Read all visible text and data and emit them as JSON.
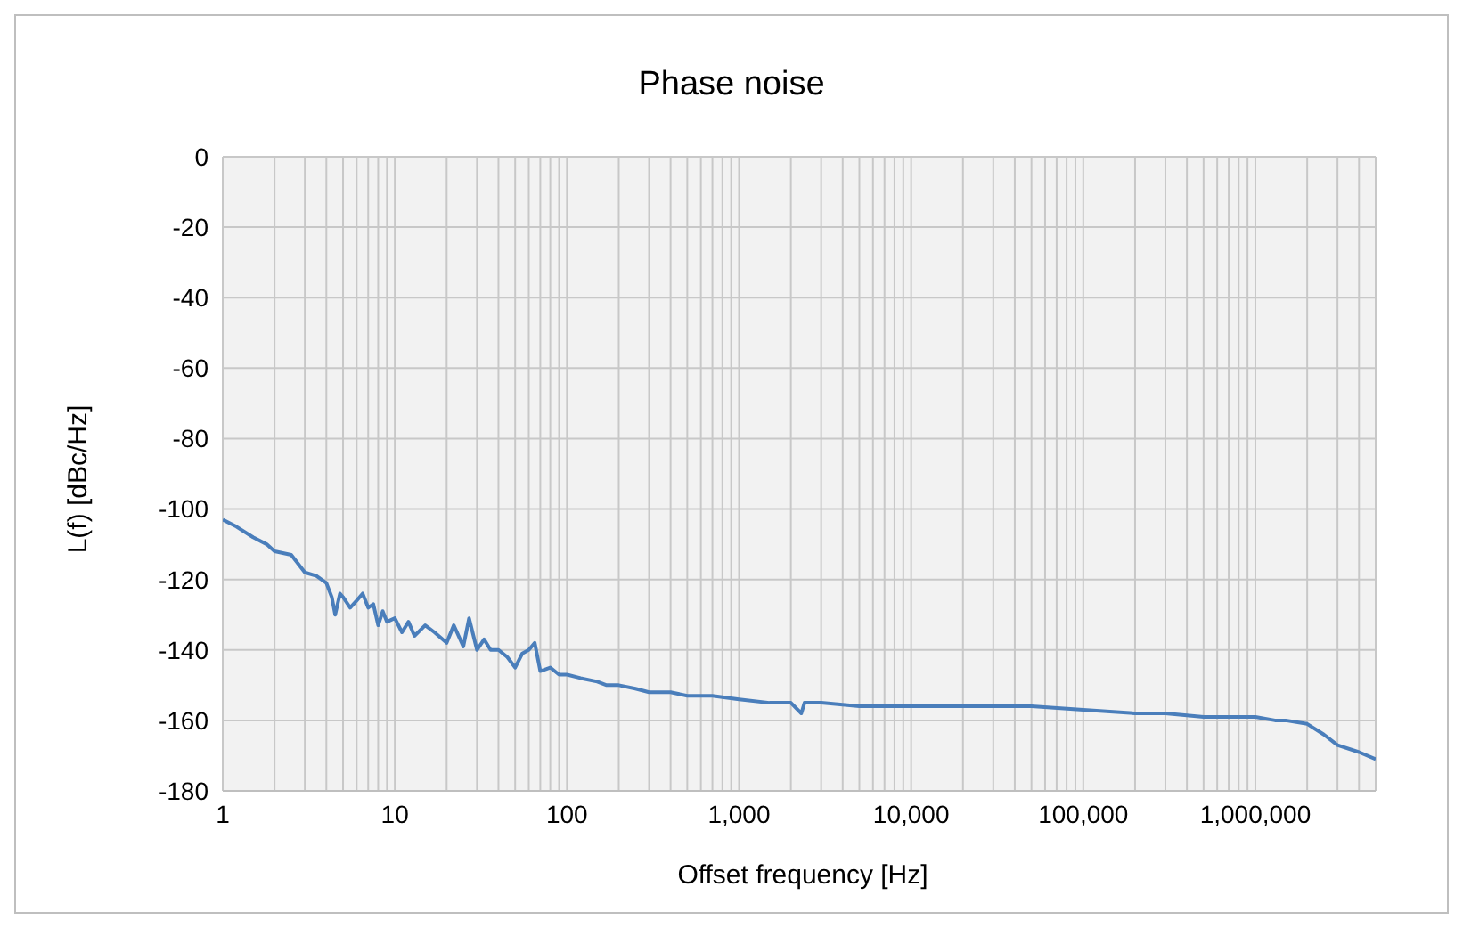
{
  "chart_data": {
    "type": "line",
    "title": "Phase noise",
    "xlabel": "Offset frequency [Hz]",
    "ylabel": "L(f) [dBc/Hz]",
    "log": "x",
    "grid": true,
    "marker": "none",
    "line_style": "solid",
    "xlim": [
      1,
      5000000
    ],
    "xticks": [
      1,
      {
        "value": 2,
        "label": null
      },
      {
        "value": 3,
        "label": null
      },
      {
        "value": 4,
        "label": null
      },
      {
        "value": 5,
        "label": null
      },
      {
        "value": 6,
        "label": null
      },
      {
        "value": 7,
        "label": null
      },
      {
        "value": 8,
        "label": null
      },
      {
        "value": 9,
        "label": null
      },
      10,
      {
        "value": 20,
        "label": null
      },
      {
        "value": 30,
        "label": null
      },
      {
        "value": 40,
        "label": null
      },
      {
        "value": 50,
        "label": null
      },
      {
        "value": 60,
        "label": null
      },
      {
        "value": 70,
        "label": null
      },
      {
        "value": 80,
        "label": null
      },
      {
        "value": 90,
        "label": null
      },
      100,
      {
        "value": 200,
        "label": null
      },
      {
        "value": 300,
        "label": null
      },
      {
        "value": 400,
        "label": null
      },
      {
        "value": 500,
        "label": null
      },
      {
        "value": 600,
        "label": null
      },
      {
        "value": 700,
        "label": null
      },
      {
        "value": 800,
        "label": null
      },
      {
        "value": 900,
        "label": null
      },
      {
        "value": 1000,
        "label": "1,000"
      },
      {
        "value": 2000,
        "label": null
      },
      {
        "value": 3000,
        "label": null
      },
      {
        "value": 4000,
        "label": null
      },
      {
        "value": 5000,
        "label": null
      },
      {
        "value": 6000,
        "label": null
      },
      {
        "value": 7000,
        "label": null
      },
      {
        "value": 8000,
        "label": null
      },
      {
        "value": 9000,
        "label": null
      },
      {
        "value": 10000,
        "label": "10,000"
      },
      {
        "value": 20000,
        "label": null
      },
      {
        "value": 30000,
        "label": null
      },
      {
        "value": 40000,
        "label": null
      },
      {
        "value": 50000,
        "label": null
      },
      {
        "value": 60000,
        "label": null
      },
      {
        "value": 70000,
        "label": null
      },
      {
        "value": 80000,
        "label": null
      },
      {
        "value": 90000,
        "label": null
      },
      {
        "value": 100000,
        "label": "100,000"
      },
      {
        "value": 200000,
        "label": null
      },
      {
        "value": 300000,
        "label": null
      },
      {
        "value": 400000,
        "label": null
      },
      {
        "value": 500000,
        "label": null
      },
      {
        "value": 600000,
        "label": null
      },
      {
        "value": 700000,
        "label": null
      },
      {
        "value": 800000,
        "label": null
      },
      {
        "value": 900000,
        "label": null
      },
      {
        "value": 1000000,
        "label": "1,000,000"
      },
      {
        "value": 2000000,
        "label": null
      },
      {
        "value": 3000000,
        "label": null
      },
      {
        "value": 4000000,
        "label": null
      }
    ],
    "ylim": [
      -180,
      0
    ],
    "yticks": [
      0,
      -20,
      -40,
      -60,
      -80,
      -100,
      -120,
      -140,
      -160,
      -180
    ],
    "x": [
      1,
      1.2,
      1.5,
      1.8,
      2,
      2.5,
      3,
      3.5,
      4,
      4.3,
      4.5,
      4.8,
      5,
      5.5,
      6,
      6.5,
      7,
      7.5,
      8,
      8.5,
      9,
      10,
      11,
      12,
      13,
      15,
      17,
      20,
      22,
      25,
      27,
      30,
      33,
      36,
      40,
      45,
      50,
      55,
      60,
      65,
      70,
      80,
      90,
      100,
      120,
      150,
      170,
      200,
      250,
      300,
      400,
      500,
      700,
      1000,
      1500,
      2000,
      2300,
      2400,
      3000,
      5000,
      10000,
      20000,
      50000,
      100000,
      200000,
      300000,
      500000,
      1000000,
      1300000,
      1500000,
      2000000,
      2500000,
      3000000,
      4000000,
      5000000
    ],
    "series": [
      {
        "color": "#4a7ebb",
        "values": [
          -103,
          -105,
          -108,
          -110,
          -112,
          -113,
          -118,
          -119,
          -121,
          -125,
          -130,
          -124,
          -125,
          -128,
          -126,
          -124,
          -128,
          -127,
          -133,
          -129,
          -132,
          -131,
          -135,
          -132,
          -136,
          -133,
          -135,
          -138,
          -133,
          -139,
          -131,
          -140,
          -137,
          -140,
          -140,
          -142,
          -145,
          -141,
          -140,
          -138,
          -146,
          -145,
          -147,
          -147,
          -148,
          -149,
          -150,
          -150,
          -151,
          -152,
          -152,
          -153,
          -153,
          -154,
          -155,
          -155,
          -158,
          -155,
          -155,
          -156,
          -156,
          -156,
          -156,
          -157,
          -158,
          -158,
          -159,
          -159,
          -160,
          -160,
          -161,
          -164,
          -167,
          -169,
          -171
        ]
      }
    ]
  }
}
